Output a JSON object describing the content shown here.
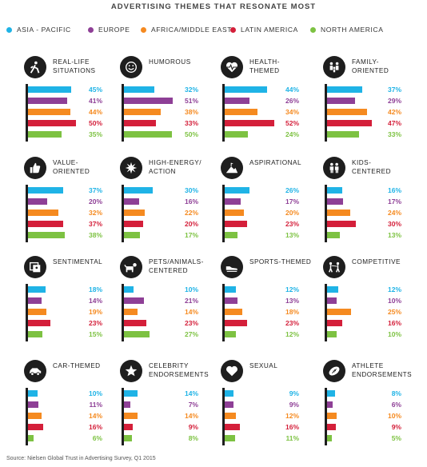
{
  "title": "ADVERTISING THEMES THAT RESONATE MOST",
  "source": "Source: Nielsen Global Trust in Advertising Survey, Q1 2015",
  "colors": [
    "#1fb3e6",
    "#8e3f96",
    "#f58a20",
    "#d41f3a",
    "#7dc242"
  ],
  "legend": [
    "ASIA - PACIFIC",
    "EUROPE",
    "AFRICA/MIDDLE EAST",
    "LATIN AMERICA",
    "NORTH AMERICA"
  ],
  "chart_data": {
    "type": "bar",
    "title": "ADVERTISING THEMES THAT RESONATE MOST",
    "series_names": [
      "ASIA - PACIFIC",
      "EUROPE",
      "AFRICA/MIDDLE EAST",
      "LATIN AMERICA",
      "NORTH AMERICA"
    ],
    "unit": "%",
    "panels": [
      {
        "label": [
          "REAL-LIFE",
          "SITUATIONS"
        ],
        "icon": "hiker-icon",
        "values": [
          45,
          41,
          44,
          50,
          35
        ]
      },
      {
        "label": [
          "HUMOROUS"
        ],
        "icon": "smiley-icon",
        "values": [
          32,
          51,
          38,
          33,
          50
        ]
      },
      {
        "label": [
          "HEALTH-",
          "THEMED"
        ],
        "icon": "heartbeat-icon",
        "values": [
          44,
          26,
          34,
          52,
          24
        ]
      },
      {
        "label": [
          "FAMILY-",
          "ORIENTED"
        ],
        "icon": "family-icon",
        "values": [
          37,
          29,
          42,
          47,
          33
        ]
      },
      {
        "label": [
          "VALUE-",
          "ORIENTED"
        ],
        "icon": "thumbs-up-icon",
        "values": [
          37,
          20,
          32,
          37,
          38
        ]
      },
      {
        "label": [
          "HIGH-ENERGY/",
          "ACTION"
        ],
        "icon": "starburst-icon",
        "values": [
          30,
          16,
          22,
          20,
          17
        ]
      },
      {
        "label": [
          "ASPIRATIONAL"
        ],
        "icon": "mountain-flag-icon",
        "values": [
          26,
          17,
          20,
          23,
          13
        ]
      },
      {
        "label": [
          "KIDS-",
          "CENTERED"
        ],
        "icon": "kids-icon",
        "values": [
          16,
          17,
          24,
          30,
          13
        ]
      },
      {
        "label": [
          "SENTIMENTAL"
        ],
        "icon": "photo-frame-icon",
        "values": [
          18,
          14,
          19,
          23,
          15
        ]
      },
      {
        "label": [
          "PETS/ANIMALS-",
          "CENTERED"
        ],
        "icon": "dog-icon",
        "values": [
          10,
          21,
          14,
          23,
          27
        ]
      },
      {
        "label": [
          "SPORTS-THEMED"
        ],
        "icon": "sneaker-icon",
        "values": [
          12,
          13,
          18,
          23,
          12
        ]
      },
      {
        "label": [
          "COMPETITIVE"
        ],
        "icon": "fencing-icon",
        "values": [
          12,
          10,
          25,
          16,
          10
        ]
      },
      {
        "label": [
          "CAR-THEMED"
        ],
        "icon": "car-icon",
        "values": [
          10,
          11,
          14,
          16,
          6
        ]
      },
      {
        "label": [
          "CELEBRITY",
          "ENDORSEMENTS"
        ],
        "icon": "star-icon",
        "values": [
          14,
          7,
          14,
          9,
          8
        ]
      },
      {
        "label": [
          "SEXUAL"
        ],
        "icon": "heart-icon",
        "values": [
          9,
          9,
          12,
          16,
          11
        ]
      },
      {
        "label": [
          "ATHLETE",
          "ENDORSEMENTS"
        ],
        "icon": "football-icon",
        "values": [
          8,
          6,
          10,
          9,
          5
        ]
      }
    ]
  }
}
